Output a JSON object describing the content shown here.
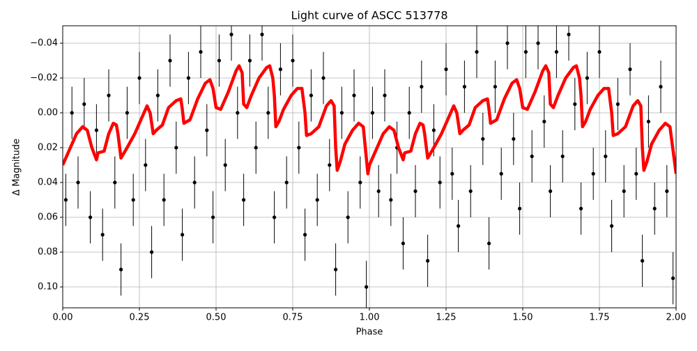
{
  "chart_data": {
    "type": "line",
    "title": "Light curve of ASCC 513778",
    "xlabel": "Phase",
    "ylabel": "Δ Magnitude",
    "xlim": [
      0,
      2
    ],
    "ylim": [
      0.112,
      -0.05
    ],
    "grid": true,
    "xticks": [
      {
        "value": 0,
        "label": "0.00"
      },
      {
        "value": 0.25,
        "label": "0.25"
      },
      {
        "value": 0.5,
        "label": "0.50"
      },
      {
        "value": 0.75,
        "label": "0.75"
      },
      {
        "value": 1,
        "label": "1.00"
      },
      {
        "value": 1.25,
        "label": "1.25"
      },
      {
        "value": 1.5,
        "label": "1.50"
      },
      {
        "value": 1.75,
        "label": "1.75"
      },
      {
        "value": 2,
        "label": "2.00"
      }
    ],
    "yticks": [
      {
        "value": -0.04,
        "label": "−0.04"
      },
      {
        "value": -0.02,
        "label": "−0.02"
      },
      {
        "value": 0,
        "label": "0.00"
      },
      {
        "value": 0.02,
        "label": "0.02"
      },
      {
        "value": 0.04,
        "label": "0.04"
      },
      {
        "value": 0.06,
        "label": "0.06"
      },
      {
        "value": 0.08,
        "label": "0.08"
      },
      {
        "value": 0.1,
        "label": "0.10"
      }
    ],
    "series": [
      {
        "color": "#000000",
        "marker": "o",
        "yerr": 0.015,
        "x": [
          0.01,
          0.03,
          0.05,
          0.07,
          0.09,
          0.11,
          0.13,
          0.15,
          0.17,
          0.19,
          0.21,
          0.23,
          0.25,
          0.27,
          0.29,
          0.31,
          0.33,
          0.35,
          0.37,
          0.39,
          0.41,
          0.43,
          0.45,
          0.47,
          0.49,
          0.51,
          0.53,
          0.55,
          0.57,
          0.59,
          0.61,
          0.63,
          0.65,
          0.67,
          0.69,
          0.71,
          0.73,
          0.75,
          0.77,
          0.79,
          0.81,
          0.83,
          0.85,
          0.87,
          0.89,
          0.91,
          0.93,
          0.95,
          0.97,
          0.99,
          1.01,
          1.03,
          1.05,
          1.07,
          1.09,
          1.11,
          1.13,
          1.15,
          1.17,
          1.19,
          1.21,
          1.23,
          1.25,
          1.27,
          1.29,
          1.31,
          1.33,
          1.35,
          1.37,
          1.39,
          1.41,
          1.43,
          1.45,
          1.47,
          1.49,
          1.51,
          1.53,
          1.55,
          1.57,
          1.59,
          1.61,
          1.63,
          1.65,
          1.67,
          1.69,
          1.71,
          1.73,
          1.75,
          1.77,
          1.79,
          1.81,
          1.83,
          1.85,
          1.87,
          1.89,
          1.91,
          1.93,
          1.95,
          1.97,
          1.99
        ],
        "values": [
          0.05,
          0.0,
          0.04,
          -0.005,
          0.06,
          0.01,
          0.07,
          -0.01,
          0.04,
          0.09,
          0.0,
          0.05,
          -0.02,
          0.03,
          0.08,
          -0.01,
          0.05,
          -0.03,
          0.02,
          0.07,
          -0.02,
          0.04,
          -0.035,
          0.01,
          0.06,
          -0.03,
          0.03,
          -0.045,
          0.0,
          0.05,
          -0.03,
          0.02,
          -0.045,
          0.0,
          0.06,
          -0.025,
          0.04,
          -0.03,
          0.02,
          0.07,
          -0.01,
          0.05,
          -0.02,
          0.03,
          0.09,
          0.0,
          0.06,
          -0.01,
          0.04,
          0.1,
          0.0,
          0.045,
          -0.01,
          0.05,
          0.02,
          0.075,
          0.0,
          0.045,
          -0.015,
          0.085,
          0.01,
          0.04,
          -0.025,
          0.035,
          0.065,
          -0.015,
          0.045,
          -0.035,
          0.015,
          0.075,
          -0.015,
          0.035,
          -0.04,
          0.015,
          0.055,
          -0.035,
          0.025,
          -0.04,
          0.005,
          0.045,
          -0.035,
          0.025,
          -0.045,
          -0.005,
          0.055,
          -0.02,
          0.035,
          -0.035,
          0.025,
          0.065,
          -0.005,
          0.045,
          -0.025,
          0.035,
          0.085,
          0.005,
          0.055,
          -0.015,
          0.045,
          0.095
        ]
      },
      {
        "color": "#ff0000",
        "x": [
          0,
          0.02,
          0.045,
          0.065,
          0.08,
          0.095,
          0.11,
          0.115,
          0.135,
          0.15,
          0.165,
          0.175,
          0.18,
          0.19,
          0.21,
          0.235,
          0.26,
          0.275,
          0.285,
          0.295,
          0.305,
          0.325,
          0.345,
          0.37,
          0.385,
          0.39,
          0.395,
          0.415,
          0.44,
          0.465,
          0.48,
          0.49,
          0.5,
          0.515,
          0.54,
          0.565,
          0.575,
          0.585,
          0.59,
          0.6,
          0.615,
          0.64,
          0.665,
          0.675,
          0.685,
          0.69,
          0.695,
          0.705,
          0.72,
          0.745,
          0.765,
          0.78,
          0.79,
          0.795,
          0.81,
          0.835,
          0.86,
          0.875,
          0.885,
          0.89,
          0.895,
          0.905,
          0.92,
          0.945,
          0.965,
          0.98,
          0.995,
          1,
          1.02,
          1.045,
          1.065,
          1.08,
          1.095,
          1.11,
          1.115,
          1.135,
          1.15,
          1.165,
          1.175,
          1.18,
          1.19,
          1.21,
          1.235,
          1.26,
          1.275,
          1.285,
          1.295,
          1.305,
          1.325,
          1.345,
          1.37,
          1.385,
          1.39,
          1.395,
          1.415,
          1.44,
          1.465,
          1.48,
          1.49,
          1.5,
          1.515,
          1.54,
          1.565,
          1.575,
          1.585,
          1.59,
          1.6,
          1.615,
          1.64,
          1.665,
          1.675,
          1.685,
          1.69,
          1.695,
          1.705,
          1.72,
          1.745,
          1.765,
          1.78,
          1.79,
          1.795,
          1.81,
          1.835,
          1.86,
          1.875,
          1.885,
          1.89,
          1.895,
          1.905,
          1.92,
          1.945,
          1.965,
          1.98,
          2
        ],
        "values": [
          0.03,
          0.022,
          0.012,
          0.008,
          0.01,
          0.02,
          0.027,
          0.023,
          0.022,
          0.012,
          0.006,
          0.007,
          0.012,
          0.026,
          0.02,
          0.012,
          0.002,
          -0.004,
          0,
          0.012,
          0.01,
          0.007,
          -0.003,
          -0.007,
          -0.008,
          -0.002,
          0.006,
          0.004,
          -0.008,
          -0.017,
          -0.019,
          -0.014,
          -0.003,
          -0.002,
          -0.012,
          -0.024,
          -0.027,
          -0.023,
          -0.005,
          -0.003,
          -0.01,
          -0.02,
          -0.026,
          -0.027,
          -0.02,
          -0.01,
          0.008,
          0.005,
          -0.002,
          -0.01,
          -0.014,
          -0.014,
          0,
          0.013,
          0.012,
          0.008,
          -0.004,
          -0.007,
          -0.004,
          0.02,
          0.033,
          0.028,
          0.018,
          0.01,
          0.006,
          0.008,
          0.035,
          0.03,
          0.022,
          0.012,
          0.008,
          0.01,
          0.02,
          0.027,
          0.023,
          0.022,
          0.012,
          0.006,
          0.007,
          0.012,
          0.026,
          0.02,
          0.012,
          0.002,
          -0.004,
          0,
          0.012,
          0.01,
          0.007,
          -0.003,
          -0.007,
          -0.008,
          -0.002,
          0.006,
          0.004,
          -0.008,
          -0.017,
          -0.019,
          -0.014,
          -0.003,
          -0.002,
          -0.012,
          -0.024,
          -0.027,
          -0.023,
          -0.005,
          -0.003,
          -0.01,
          -0.02,
          -0.026,
          -0.027,
          -0.02,
          -0.01,
          0.008,
          0.005,
          -0.002,
          -0.01,
          -0.014,
          -0.014,
          0,
          0.013,
          0.012,
          0.008,
          -0.004,
          -0.007,
          -0.004,
          0.02,
          0.033,
          0.028,
          0.018,
          0.01,
          0.006,
          0.008,
          0.035
        ]
      }
    ]
  }
}
